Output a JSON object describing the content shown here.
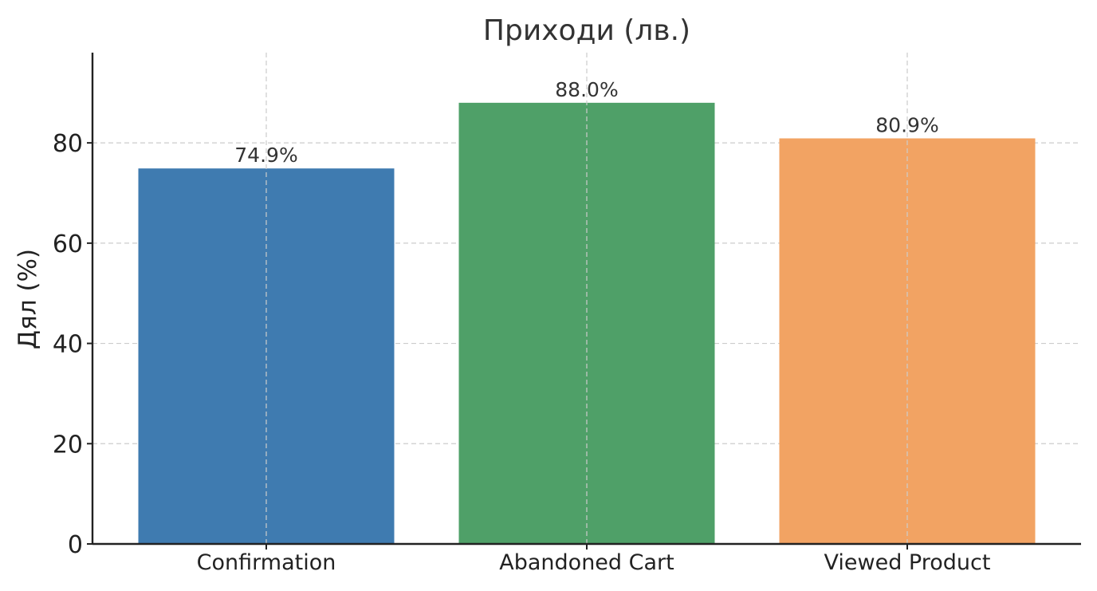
{
  "chart_data": {
    "type": "bar",
    "title": "Приходи (лв.)",
    "xlabel": "",
    "ylabel": "Дял (%)",
    "categories": [
      "Confirmation",
      "Abandoned Cart",
      "Viewed Product"
    ],
    "values": [
      74.9,
      88.0,
      80.9
    ],
    "value_labels": [
      "74.9%",
      "88.0%",
      "80.9%"
    ],
    "colors": [
      "#3f7bb0",
      "#4fa068",
      "#f2a363"
    ],
    "ylim": [
      0,
      98
    ],
    "yticks": [
      0,
      20,
      40,
      60,
      80
    ],
    "ytick_labels": [
      "0",
      "20",
      "40",
      "60",
      "80"
    ],
    "grid": true,
    "legend": "none"
  }
}
